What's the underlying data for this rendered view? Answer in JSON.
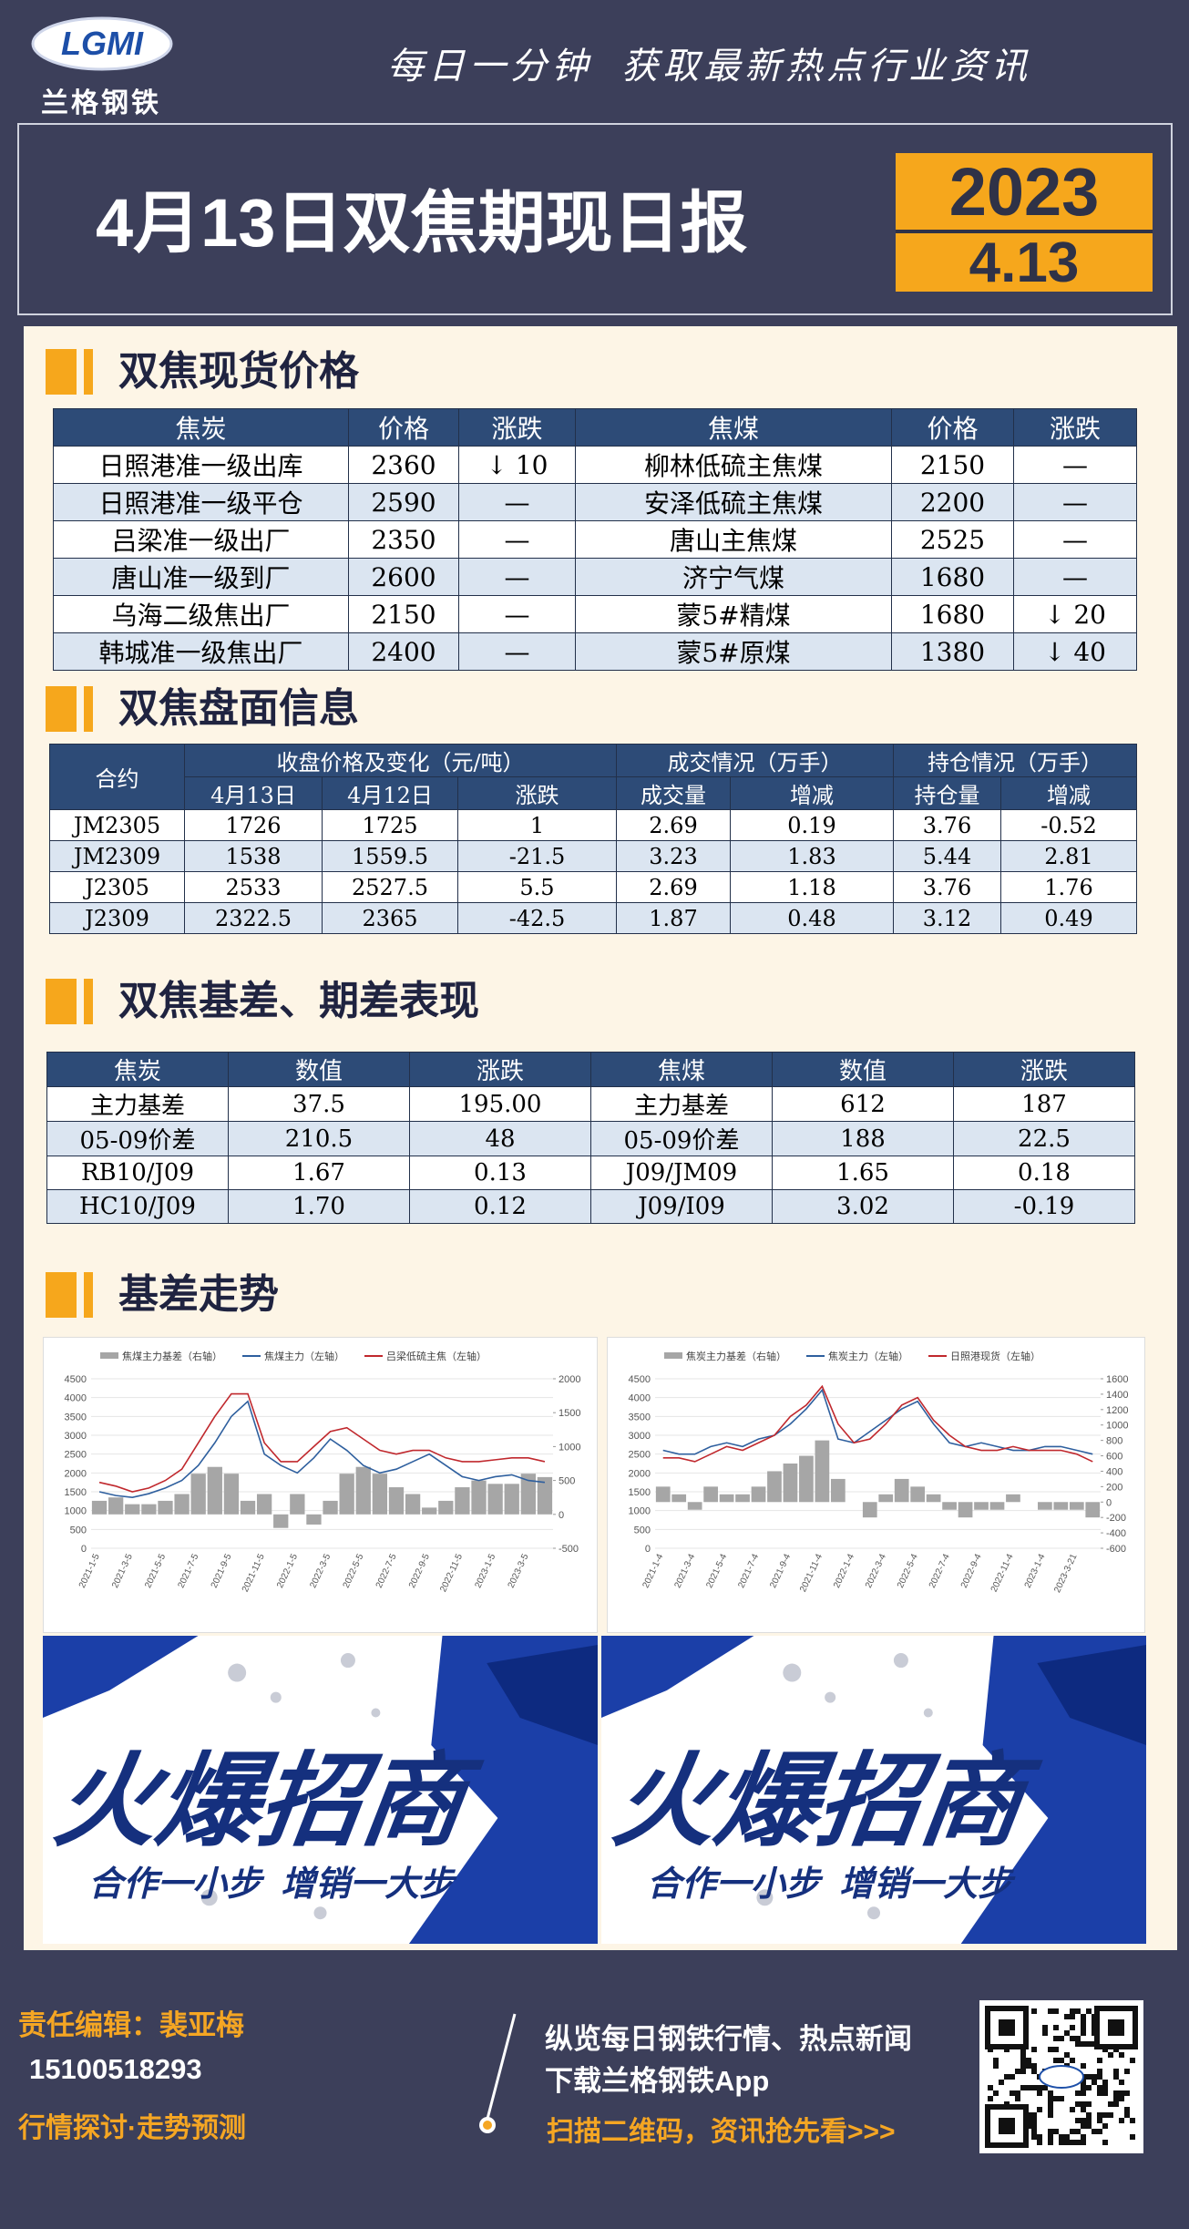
{
  "header": {
    "logo": "LGMI",
    "brand": "兰格钢铁",
    "slogan": "每日一分钟  获取最新热点行业资讯"
  },
  "title": "4月13日双焦期现日报",
  "badge": {
    "year": "2023",
    "date": "4.13"
  },
  "spot": {
    "heading": "双焦现货价格",
    "columns": [
      "焦炭",
      "价格",
      "涨跌",
      "焦煤",
      "价格",
      "涨跌"
    ],
    "rows": [
      [
        "日照港准一级出库",
        "2360",
        "↓ 10",
        "柳林低硫主焦煤",
        "2150",
        "—"
      ],
      [
        "日照港准一级平仓",
        "2590",
        "—",
        "安泽低硫主焦煤",
        "2200",
        "—"
      ],
      [
        "吕梁准一级出厂",
        "2350",
        "—",
        "唐山主焦煤",
        "2525",
        "—"
      ],
      [
        "唐山准一级到厂",
        "2600",
        "—",
        "济宁气煤",
        "1680",
        "—"
      ],
      [
        "乌海二级焦出厂",
        "2150",
        "—",
        "蒙5#精煤",
        "1680",
        "↓ 20"
      ],
      [
        "韩城准一级焦出厂",
        "2400",
        "—",
        "蒙5#原煤",
        "1380",
        "↓ 40"
      ]
    ]
  },
  "futures": {
    "heading": "双焦盘面信息",
    "header_top": [
      "合约",
      "收盘价格及变化（元/吨）",
      "成交情况（万手）",
      "持仓情况（万手）"
    ],
    "header_sub": [
      "4月13日",
      "4月12日",
      "涨跌",
      "成交量",
      "增减",
      "持仓量",
      "增减"
    ],
    "rows": [
      [
        "JM2305",
        "1726",
        "1725",
        "1",
        "2.69",
        "0.19",
        "3.76",
        "-0.52"
      ],
      [
        "JM2309",
        "1538",
        "1559.5",
        "-21.5",
        "3.23",
        "1.83",
        "5.44",
        "2.81"
      ],
      [
        "J2305",
        "2533",
        "2527.5",
        "5.5",
        "2.69",
        "1.18",
        "3.76",
        "1.76"
      ],
      [
        "J2309",
        "2322.5",
        "2365",
        "-42.5",
        "1.87",
        "0.48",
        "3.12",
        "0.49"
      ]
    ]
  },
  "basis": {
    "heading": "双焦基差、期差表现",
    "columns": [
      "焦炭",
      "数值",
      "涨跌",
      "焦煤",
      "数值",
      "涨跌"
    ],
    "rows": [
      [
        "主力基差",
        "37.5",
        "195.00",
        "主力基差",
        "612",
        "187"
      ],
      [
        "05-09价差",
        "210.5",
        "48",
        "05-09价差",
        "188",
        "22.5"
      ],
      [
        "RB10/J09",
        "1.67",
        "0.13",
        "J09/JM09",
        "1.65",
        "0.18"
      ],
      [
        "HC10/J09",
        "1.70",
        "0.12",
        "J09/I09",
        "3.02",
        "-0.19"
      ]
    ]
  },
  "trend_heading": "基差走势",
  "chart_data": [
    {
      "type": "combo",
      "categories": [
        "2021-1-5",
        null,
        "2021-3-5",
        null,
        "2021-5-5",
        null,
        "2021-7-5",
        null,
        "2021-9-5",
        null,
        "2021-11-5",
        null,
        "2022-1-5",
        null,
        "2022-3-5",
        null,
        "2022-5-5",
        null,
        "2022-7-5",
        null,
        "2022-9-5",
        null,
        "2022-11-5",
        null,
        "2023-1-5",
        null,
        "2023-3-5",
        null
      ],
      "ylim": [
        0,
        4500
      ],
      "yticks": [
        0,
        500,
        1000,
        1500,
        2000,
        2500,
        3000,
        3500,
        4000,
        4500
      ],
      "y2lim": [
        -500,
        2000
      ],
      "y2ticks": [
        -500,
        0,
        500,
        1000,
        1500,
        2000
      ],
      "series": [
        {
          "name": "焦煤主力基差（右轴）",
          "color": "#a6a6a6",
          "kind": "bar",
          "axis": "y2",
          "values": [
            200,
            250,
            150,
            150,
            200,
            300,
            600,
            700,
            600,
            200,
            300,
            -200,
            300,
            -150,
            200,
            600,
            700,
            600,
            400,
            300,
            100,
            200,
            400,
            500,
            450,
            450,
            600,
            550
          ]
        },
        {
          "name": "焦煤主力（左轴）",
          "color": "#2e5f9e",
          "kind": "line",
          "values": [
            1500,
            1400,
            1350,
            1450,
            1600,
            1800,
            2200,
            2800,
            3500,
            3900,
            2500,
            2200,
            2000,
            2400,
            2900,
            2600,
            2200,
            2000,
            2100,
            2300,
            2500,
            2200,
            1900,
            1800,
            1900,
            1950,
            1800,
            1750
          ]
        },
        {
          "name": "吕梁低硫主焦（左轴）",
          "color": "#c0282d",
          "kind": "line",
          "values": [
            1750,
            1650,
            1500,
            1600,
            1800,
            2100,
            2800,
            3500,
            4100,
            4100,
            2800,
            2300,
            2300,
            2700,
            3100,
            3200,
            2900,
            2600,
            2500,
            2600,
            2600,
            2400,
            2300,
            2300,
            2350,
            2400,
            2400,
            2300
          ]
        }
      ]
    },
    {
      "type": "combo",
      "categories": [
        "2021-1-4",
        null,
        "2021-3-4",
        null,
        "2021-5-4",
        null,
        "2021-7-4",
        null,
        "2021-9-4",
        null,
        "2021-11-4",
        null,
        "2022-1-4",
        null,
        "2022-3-4",
        null,
        "2022-5-4",
        null,
        "2022-7-4",
        null,
        "2022-9-4",
        null,
        "2022-11-4",
        null,
        "2023-1-4",
        null,
        "2023-3-21",
        null
      ],
      "ylim": [
        0,
        4500
      ],
      "yticks": [
        0,
        500,
        1000,
        1500,
        2000,
        2500,
        3000,
        3500,
        4000,
        4500
      ],
      "y2lim": [
        -600,
        1600
      ],
      "y2ticks": [
        -600,
        -400,
        -200,
        0,
        200,
        400,
        600,
        800,
        1000,
        1200,
        1400,
        1600
      ],
      "series": [
        {
          "name": "焦炭主力基差（右轴）",
          "color": "#a6a6a6",
          "kind": "bar",
          "axis": "y2",
          "values": [
            200,
            100,
            -100,
            200,
            100,
            100,
            200,
            400,
            500,
            600,
            800,
            300,
            0,
            -200,
            100,
            300,
            200,
            100,
            -100,
            -200,
            -100,
            -100,
            100,
            0,
            -100,
            -100,
            -100,
            -200
          ]
        },
        {
          "name": "焦炭主力（左轴）",
          "color": "#2e5f9e",
          "kind": "line",
          "values": [
            2600,
            2500,
            2500,
            2700,
            2800,
            2700,
            2900,
            3000,
            3300,
            3700,
            4200,
            2900,
            2800,
            3100,
            3400,
            3700,
            3900,
            3300,
            2800,
            2700,
            2800,
            2700,
            2600,
            2600,
            2700,
            2700,
            2600,
            2500
          ]
        },
        {
          "name": "日照港现货（左轴）",
          "color": "#c0282d",
          "kind": "line",
          "values": [
            2400,
            2400,
            2300,
            2500,
            2700,
            2600,
            2800,
            3000,
            3500,
            3800,
            4300,
            3300,
            2800,
            2900,
            3300,
            3800,
            4000,
            3400,
            3000,
            2700,
            2600,
            2600,
            2700,
            2600,
            2600,
            2600,
            2500,
            2300
          ]
        }
      ]
    }
  ],
  "ads": [
    {
      "title": "火爆招商",
      "slogan": "合作一小步  增销一大步"
    },
    {
      "title": "火爆招商",
      "slogan": "合作一小步  增销一大步"
    }
  ],
  "footer": {
    "editor": "责任编辑：裴亚梅",
    "phone": "15100518293",
    "tagline": "行情探讨·走势预测",
    "line1": "纵览每日钢铁行情、热点新闻",
    "line2": "下载兰格钢铁App",
    "cta": "扫描二维码，资讯抢先看>>>"
  }
}
